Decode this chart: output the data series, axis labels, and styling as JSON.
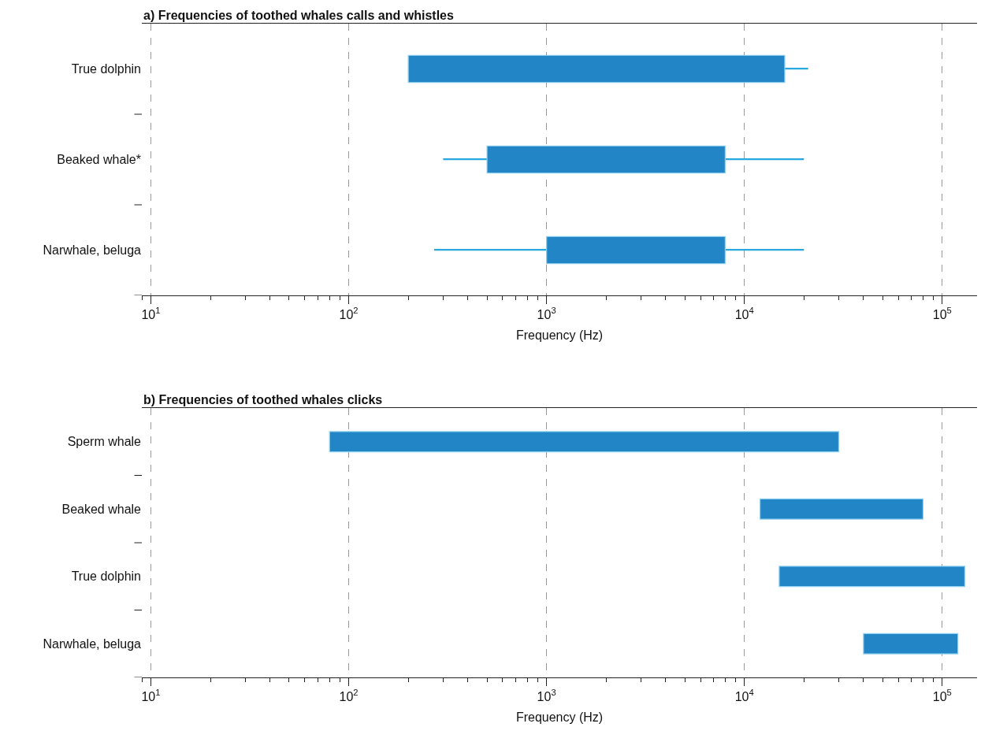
{
  "chart_data": [
    {
      "type": "bar",
      "orientation": "horizontal",
      "title": "a) Frequencies of toothed whales calls and whistles",
      "xlabel": "Frequency (Hz)",
      "categories": [
        "True dolphin",
        "Beaked whale*",
        "Narwhale, beluga"
      ],
      "series": [
        {
          "color": "#29a8e0",
          "base": [
            200,
            300,
            270
          ],
          "values": [
            20800,
            19700,
            19730
          ]
        },
        {
          "color": "#2286c6",
          "base": [
            200,
            500,
            1000
          ],
          "values": [
            15800,
            7500,
            7000
          ]
        }
      ],
      "log": "x",
      "xlim": [
        9,
        150000
      ],
      "xticks": [
        {
          "value": 10,
          "label": "10$^{1}$"
        },
        {
          "value": 100,
          "label": "10$^{2}$"
        },
        {
          "value": 1000,
          "label": "10$^{3}$"
        },
        {
          "value": 10000,
          "label": "10$^{4}$"
        },
        {
          "value": 100000,
          "label": "10$^{5}$"
        }
      ],
      "grid": "x"
    },
    {
      "type": "bar",
      "orientation": "horizontal",
      "title": "b) Frequencies of toothed whales clicks",
      "xlabel": "Frequency (Hz)",
      "categories": [
        "Sperm whale",
        "Beaked whale",
        "True dolphin",
        "Narwhale, beluga"
      ],
      "base": [
        80,
        12000,
        15000,
        40000
      ],
      "values": [
        29920,
        68000,
        115000,
        80000
      ],
      "color": "#2286c6",
      "log": "x",
      "xlim": [
        9,
        150000
      ],
      "xticks": [
        {
          "value": 10,
          "label": "10$^{1}$"
        },
        {
          "value": 100,
          "label": "10$^{2}$"
        },
        {
          "value": 1000,
          "label": "10$^{3}$"
        },
        {
          "value": 10000,
          "label": "10$^{4}$"
        },
        {
          "value": 100000,
          "label": "10$^{5}$"
        }
      ],
      "grid": "x"
    }
  ]
}
